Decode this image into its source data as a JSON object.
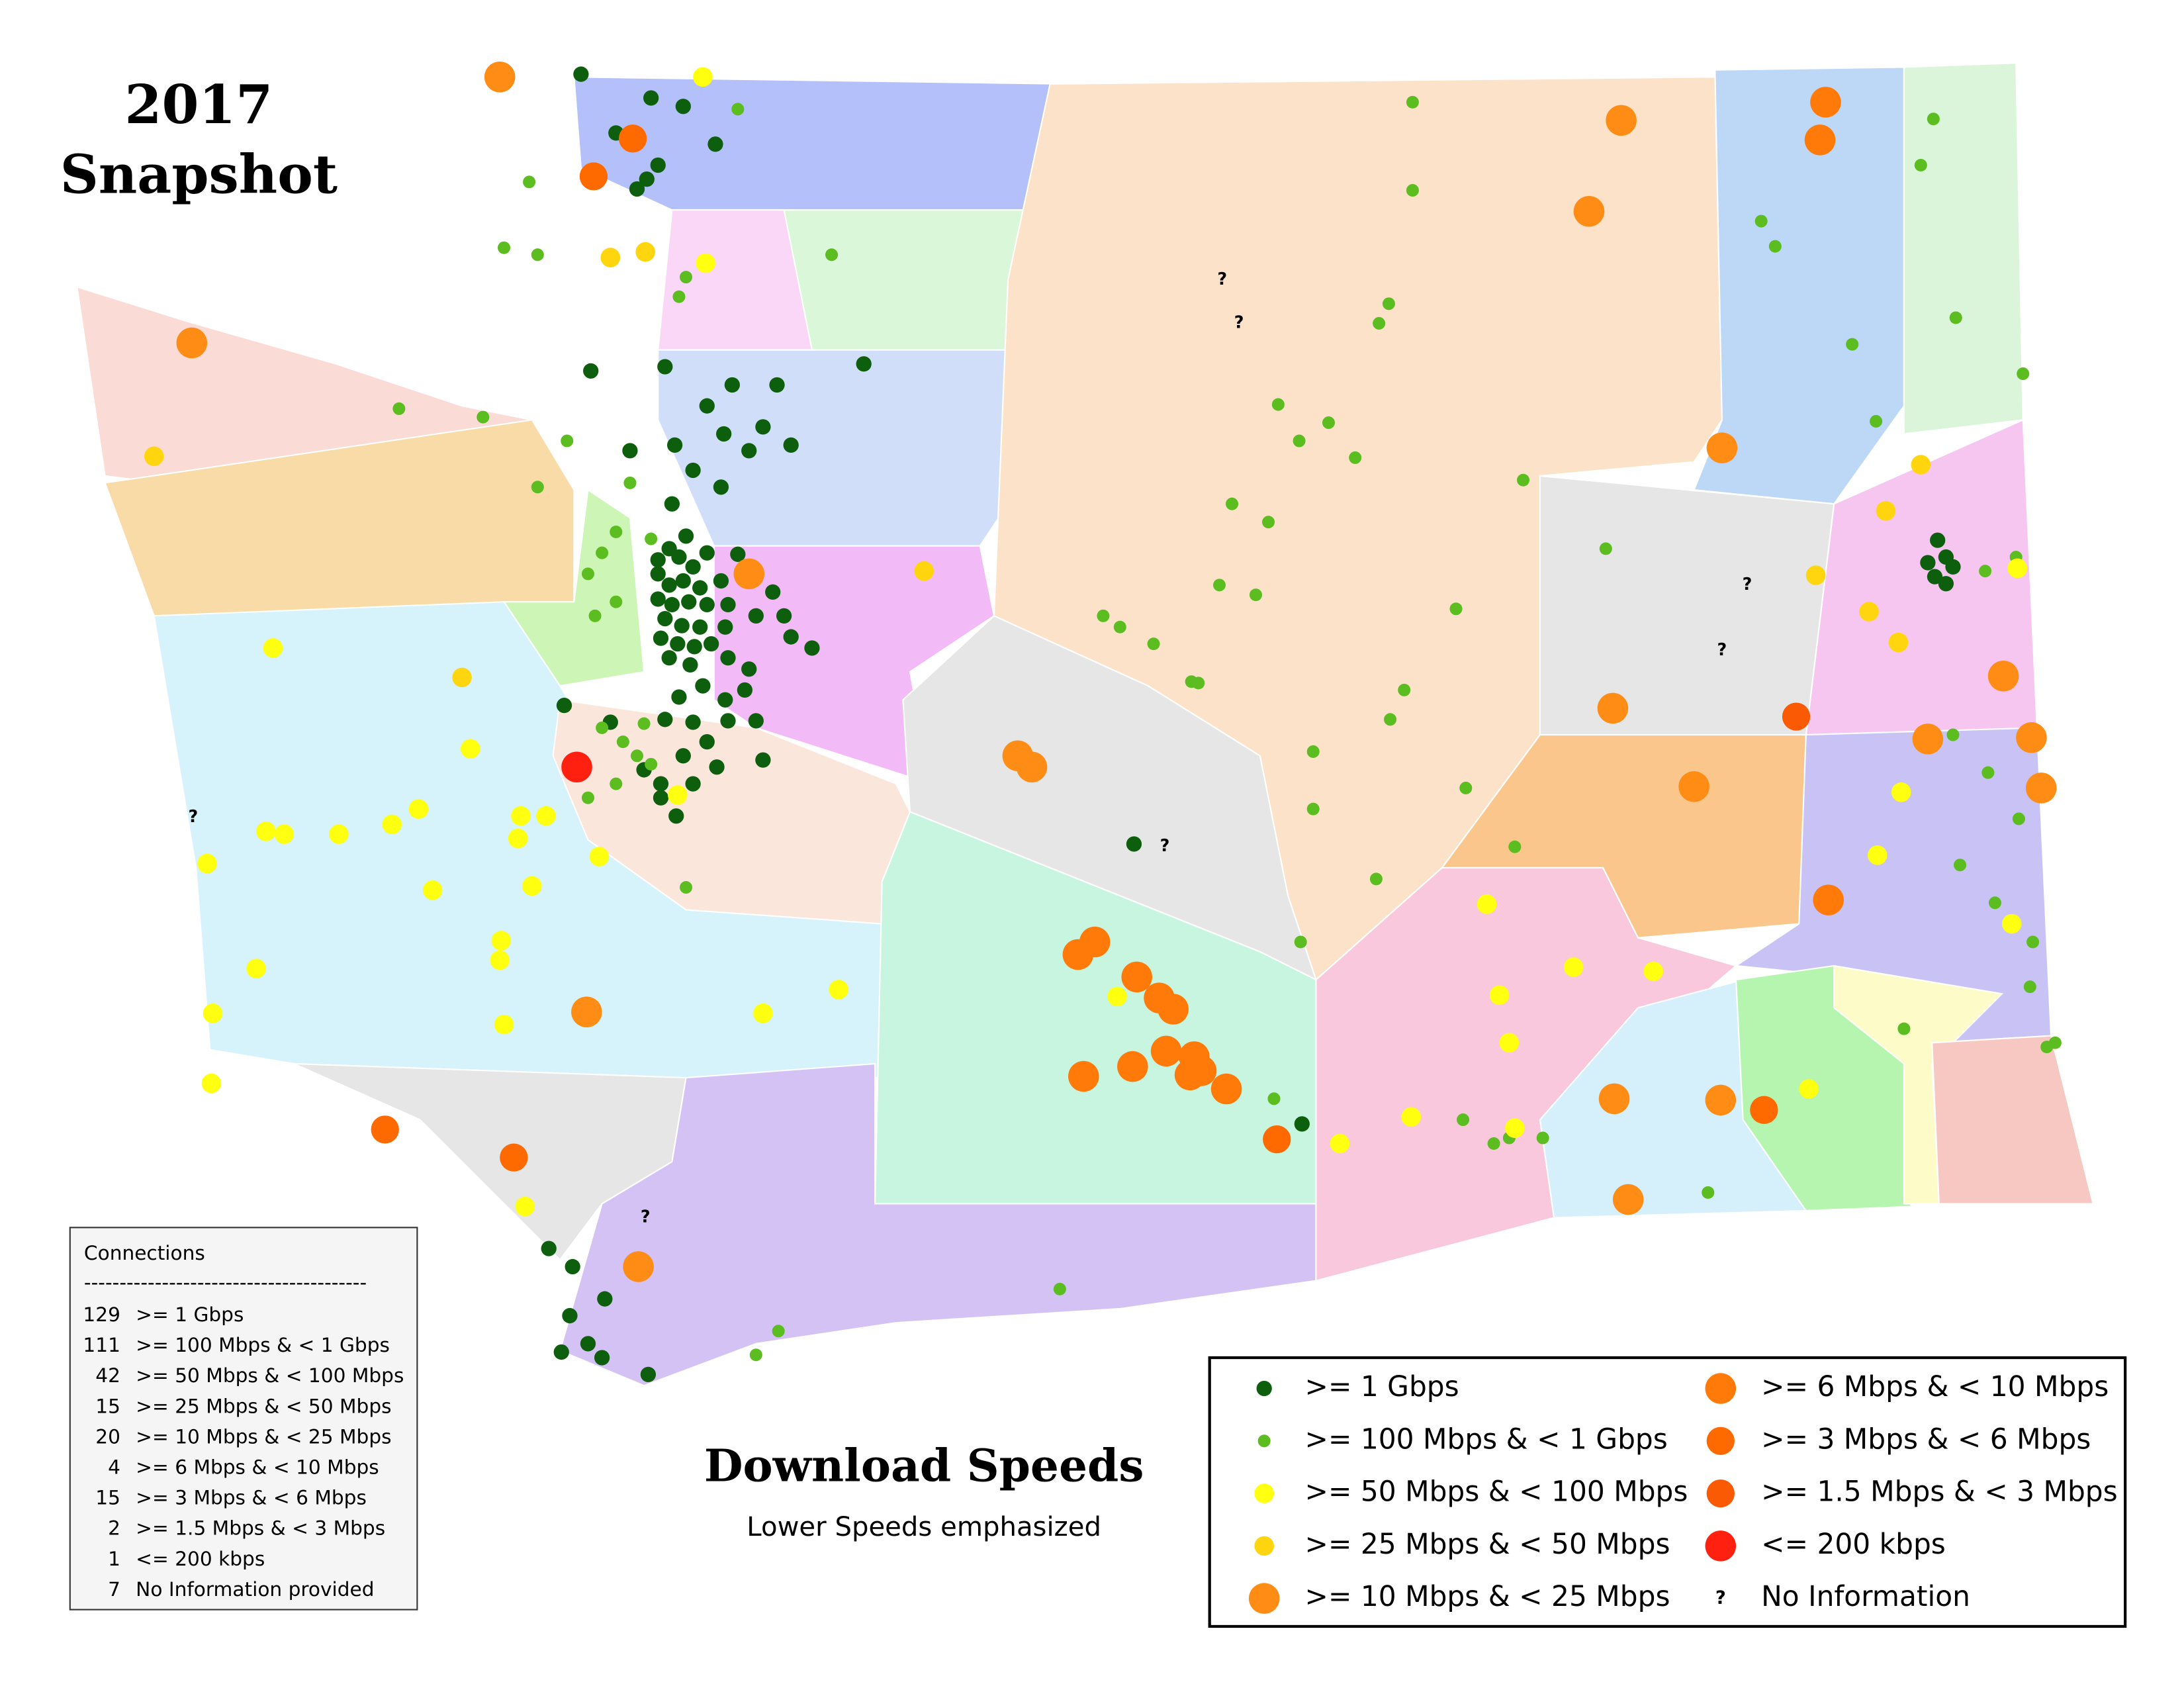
{
  "title": {
    "year": "2017",
    "subtitle": "Snapshot"
  },
  "connections": {
    "heading": "Connections",
    "rule": "----------------------------------------",
    "rows": [
      [
        129,
        ">= 1 Gbps"
      ],
      [
        111,
        ">= 100 Mbps & < 1 Gbps"
      ],
      [
        42,
        ">= 50 Mbps & < 100 Mbps"
      ],
      [
        15,
        ">= 25 Mbps & < 50 Mbps"
      ],
      [
        20,
        ">= 10 Mbps & < 25 Mbps"
      ],
      [
        4,
        ">= 6 Mbps & < 10 Mbps"
      ],
      [
        15,
        ">= 3 Mbps & < 6 Mbps"
      ],
      [
        2,
        ">= 1.5 Mbps & < 3 Mbps"
      ],
      [
        1,
        "<= 200 kbps"
      ],
      [
        7,
        "No Information provided"
      ]
    ]
  },
  "caption": {
    "title": "Download Speeds",
    "subtitle": "Lower Speeds emphasized"
  },
  "legend": {
    "items": [
      {
        "label": ">= 1 Gbps",
        "color": "#0d5e0d"
      },
      {
        "label": ">= 100 Mbps & < 1 Gbps",
        "color": "#5cbd20"
      },
      {
        "label": ">= 50 Mbps & < 100 Mbps",
        "color": "#ffff10"
      },
      {
        "label": ">= 25 Mbps & < 50 Mbps",
        "color": "#ffd510"
      },
      {
        "label": ">= 10 Mbps & < 25 Mbps",
        "color": "#ff8c14"
      },
      {
        "label": ">= 6 Mbps & < 10 Mbps",
        "color": "#ff7a08"
      },
      {
        "label": ">= 3 Mbps & < 6 Mbps",
        "color": "#ff6a00"
      },
      {
        "label": ">= 1.5 Mbps & < 3 Mbps",
        "color": "#fb5a05"
      },
      {
        "label": "<= 200 kbps",
        "color": "#ff2010"
      },
      {
        "label": "No Information",
        "symbol": "?"
      }
    ]
  }
}
